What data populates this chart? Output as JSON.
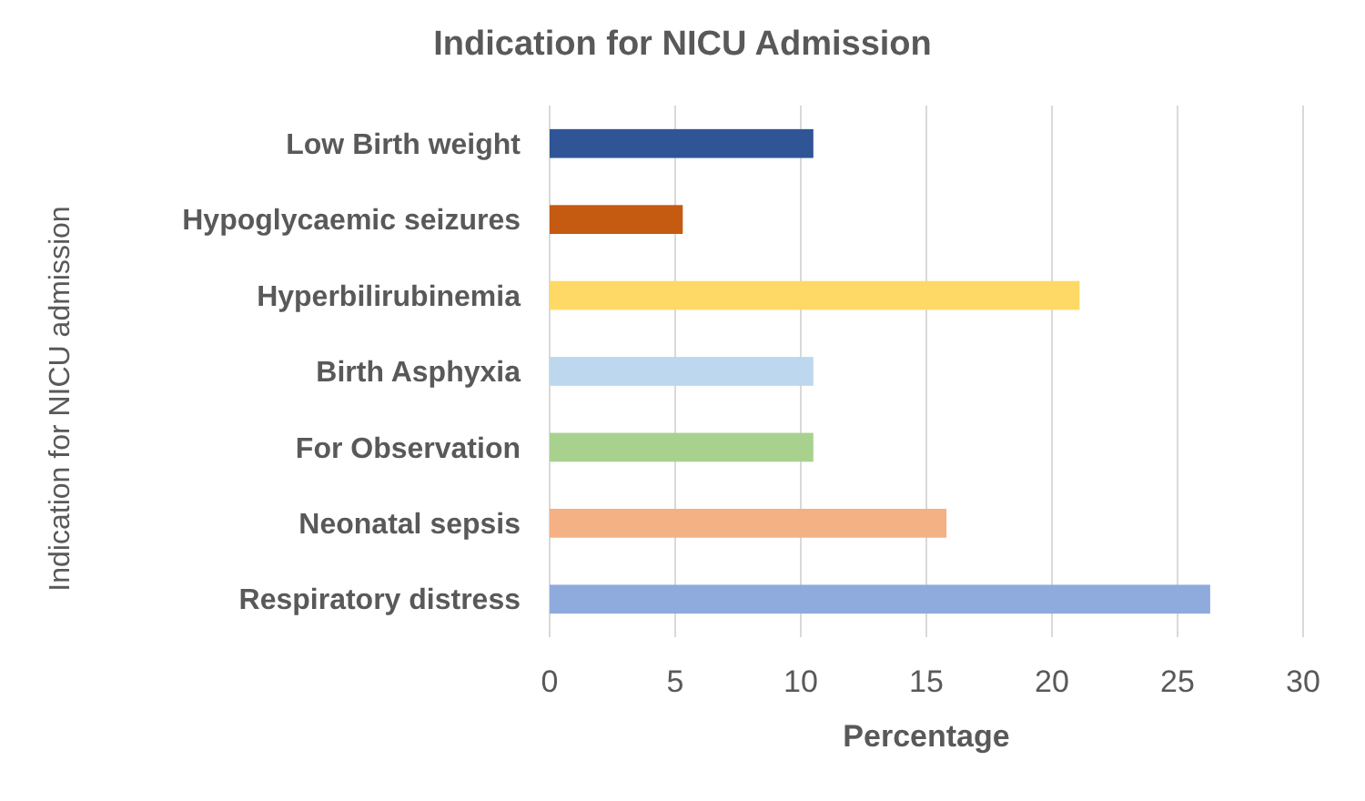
{
  "chart_data": {
    "type": "bar",
    "orientation": "horizontal",
    "title": "Indication for NICU Admission",
    "xlabel": "Percentage",
    "ylabel": "Indication for NICU admission",
    "categories": [
      "Low Birth weight",
      "Hypoglycaemic seizures",
      "Hyperbilirubinemia",
      "Birth Asphyxia",
      "For Observation",
      "Neonatal sepsis",
      "Respiratory distress"
    ],
    "values": [
      10.5,
      5.3,
      21.1,
      10.5,
      10.5,
      15.8,
      26.3
    ],
    "colors": [
      "#2f5597",
      "#c55a11",
      "#ffd966",
      "#bdd7ee",
      "#a9d18e",
      "#f4b183",
      "#8faadc"
    ],
    "xlim": [
      0,
      30
    ],
    "xticks": [
      0,
      5,
      10,
      15,
      20,
      25,
      30
    ],
    "grid": "x"
  }
}
